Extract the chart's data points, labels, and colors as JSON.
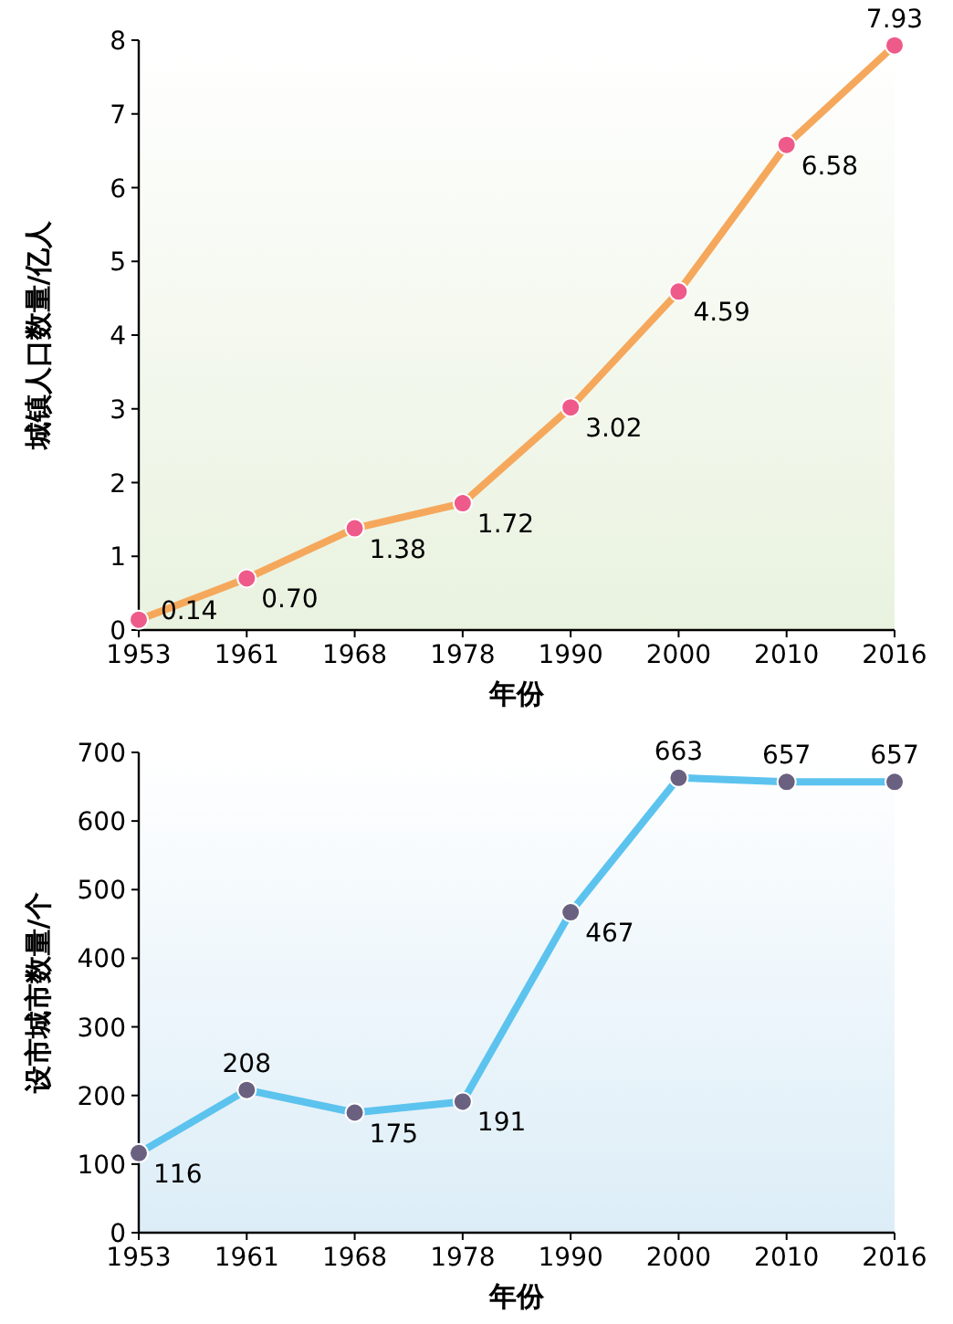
{
  "chart_data": [
    {
      "type": "line",
      "xlabel": "年份",
      "ylabel": "城镇人口数量/亿人",
      "categories": [
        "1953",
        "1961",
        "1968",
        "1978",
        "1990",
        "2000",
        "2010",
        "2016"
      ],
      "series": [
        {
          "color": "#f5a85c",
          "values": [
            0.14,
            0.7,
            1.38,
            1.72,
            3.02,
            4.59,
            6.58,
            7.93
          ]
        }
      ],
      "value_labels": [
        "0.14",
        "0.70",
        "1.38",
        "1.72",
        "3.02",
        "4.59",
        "6.58",
        "7.93"
      ],
      "ylim": [
        0,
        8
      ],
      "yticks": [
        0,
        1,
        2,
        3,
        4,
        5,
        6,
        7,
        8
      ],
      "marker": "circle",
      "line_style": "solid"
    },
    {
      "type": "line",
      "xlabel": "年份",
      "ylabel": "设市城市数量/个",
      "categories": [
        "1953",
        "1961",
        "1968",
        "1978",
        "1990",
        "2000",
        "2010",
        "2016"
      ],
      "series": [
        {
          "color": "#5cc3ee",
          "values": [
            116,
            208,
            175,
            191,
            467,
            663,
            657,
            657
          ]
        }
      ],
      "ylim": [
        0,
        700
      ],
      "yticks": [
        0,
        100,
        200,
        300,
        400,
        500,
        600,
        700
      ],
      "data_labels": true,
      "marker": "circle",
      "line_style": "solid"
    }
  ]
}
